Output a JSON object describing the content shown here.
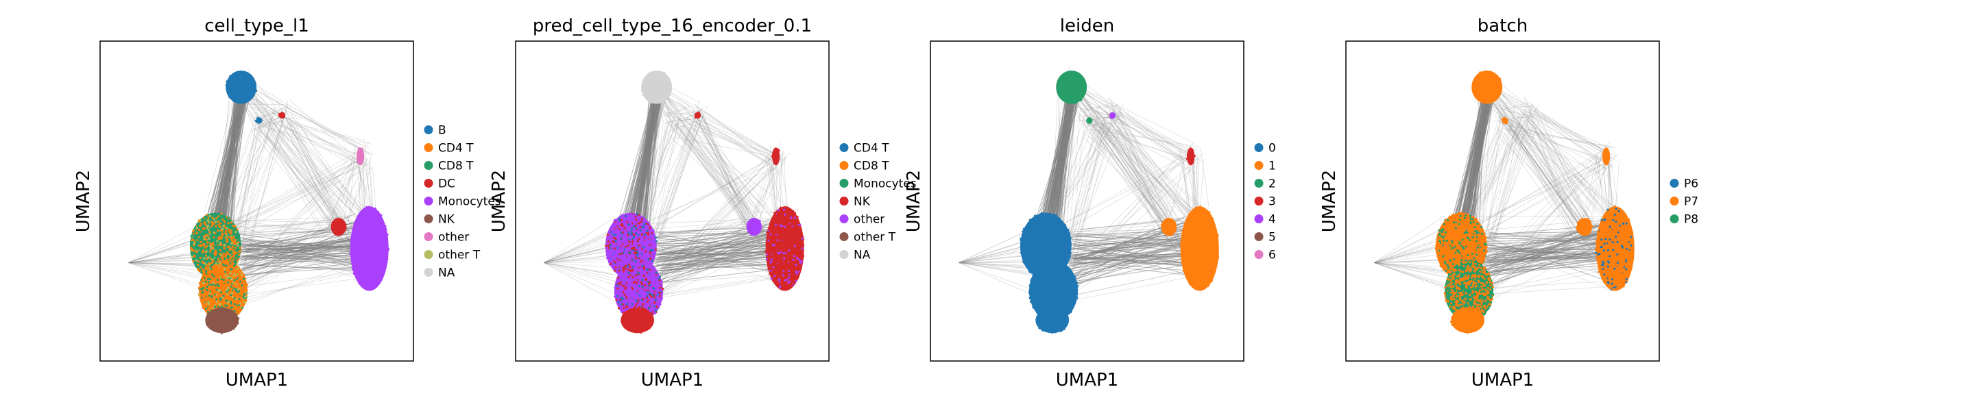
{
  "chart_data": [
    {
      "type": "scatter",
      "title": "cell_type_l1",
      "xlabel": "UMAP1",
      "ylabel": "UMAP2",
      "grid": false,
      "legend_placement": "right",
      "legend": [
        {
          "name": "B",
          "color": "#1f77b4"
        },
        {
          "name": "CD4 T",
          "color": "#ff7f0e"
        },
        {
          "name": "CD8 T",
          "color": "#279e68"
        },
        {
          "name": "DC",
          "color": "#d62728"
        },
        {
          "name": "Monocytes",
          "color": "#aa40fc"
        },
        {
          "name": "NK",
          "color": "#8c564b"
        },
        {
          "name": "other",
          "color": "#e377c2"
        },
        {
          "name": "other T",
          "color": "#b5bd61"
        },
        {
          "name": "NA",
          "color": "#d3d3d3"
        }
      ]
    },
    {
      "type": "scatter",
      "title": "pred_cell_type_16_encoder_0.1",
      "xlabel": "UMAP1",
      "ylabel": "UMAP2",
      "grid": false,
      "legend_placement": "right",
      "legend": [
        {
          "name": "CD4 T",
          "color": "#1f77b4"
        },
        {
          "name": "CD8 T",
          "color": "#ff7f0e"
        },
        {
          "name": "Monocytes",
          "color": "#279e68"
        },
        {
          "name": "NK",
          "color": "#d62728"
        },
        {
          "name": "other",
          "color": "#aa40fc"
        },
        {
          "name": "other T",
          "color": "#8c564b"
        },
        {
          "name": "NA",
          "color": "#d3d3d3"
        }
      ]
    },
    {
      "type": "scatter",
      "title": "leiden",
      "xlabel": "UMAP1",
      "ylabel": "UMAP2",
      "grid": false,
      "legend_placement": "right",
      "legend": [
        {
          "name": "0",
          "color": "#1f77b4"
        },
        {
          "name": "1",
          "color": "#ff7f0e"
        },
        {
          "name": "2",
          "color": "#279e68"
        },
        {
          "name": "3",
          "color": "#d62728"
        },
        {
          "name": "4",
          "color": "#aa40fc"
        },
        {
          "name": "5",
          "color": "#8c564b"
        },
        {
          "name": "6",
          "color": "#e377c2"
        }
      ]
    },
    {
      "type": "scatter",
      "title": "batch",
      "xlabel": "UMAP1",
      "ylabel": "UMAP2",
      "grid": false,
      "legend_placement": "right",
      "legend": [
        {
          "name": "P6",
          "color": "#1f77b4"
        },
        {
          "name": "P7",
          "color": "#ff7f0e"
        },
        {
          "name": "P8",
          "color": "#279e68"
        }
      ]
    }
  ],
  "edge_color": "#808080"
}
